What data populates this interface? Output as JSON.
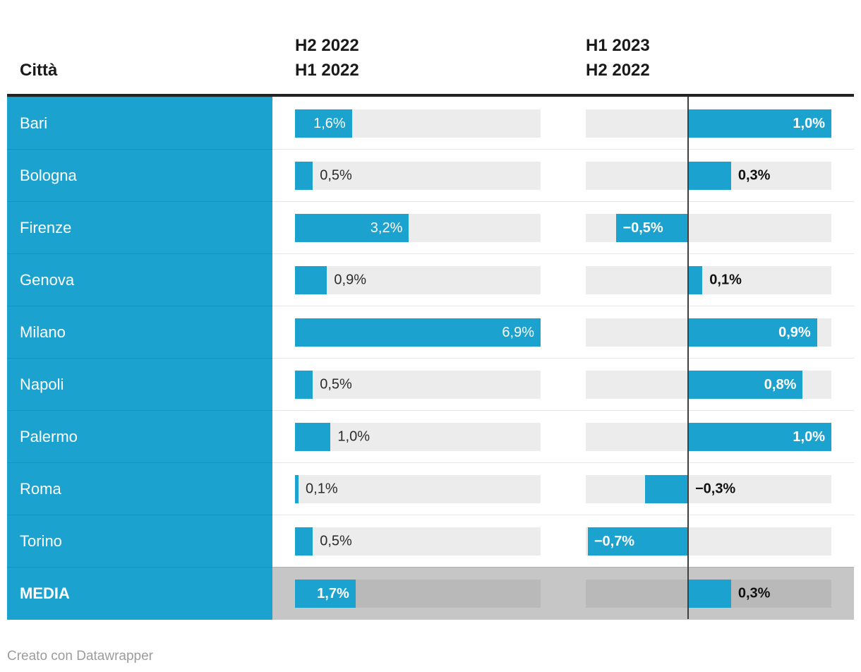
{
  "header": {
    "city_label": "Città",
    "col1_lines": [
      "H2 2022",
      "H1 2022"
    ],
    "col2_lines": [
      "H1 2023",
      "H2 2022"
    ]
  },
  "footer": {
    "credit": "Creato con Datawrapper"
  },
  "colors": {
    "accent": "#1CA2CF",
    "track": "#ECECEC",
    "media_row_bg": "#C6C6C6",
    "media_track": "#B9B9B9",
    "separator": "#E7E7E7",
    "header_rule": "#222222",
    "zero_line": "#3F3F3F",
    "header_text": "#1A1A1A",
    "value_outside_col1": "#2B2B2B",
    "value_outside_col2": "#111111",
    "city_text": "#FFFFFF",
    "footer_text": "#9C9C9C"
  },
  "chart_data": {
    "type": "bar",
    "orientation": "horizontal",
    "unit": "%",
    "categories": [
      "Bari",
      "Bologna",
      "Firenze",
      "Genova",
      "Milano",
      "Napoli",
      "Palermo",
      "Roma",
      "Torino",
      "MEDIA"
    ],
    "summary_row": "MEDIA",
    "series": [
      {
        "name": "H2 2022 / H1 2022",
        "values": [
          1.6,
          0.5,
          3.2,
          0.9,
          6.9,
          0.5,
          1.0,
          0.1,
          0.5,
          1.7
        ],
        "labels": [
          "1,6%",
          "0,5%",
          "3,2%",
          "0,9%",
          "6,9%",
          "0,5%",
          "1,0%",
          "0,1%",
          "0,5%",
          "1,7%"
        ],
        "domain": [
          0,
          6.9
        ],
        "zero_line": false
      },
      {
        "name": "H1 2023 / H2 2022",
        "values": [
          1.0,
          0.3,
          -0.5,
          0.1,
          0.9,
          0.8,
          1.0,
          -0.3,
          -0.7,
          0.3
        ],
        "labels": [
          "1,0%",
          "0,3%",
          "−0,5%",
          "0,1%",
          "0,9%",
          "0,8%",
          "1,0%",
          "−0,3%",
          "−0,7%",
          "0,3%"
        ],
        "domain": [
          -0.714,
          1.0
        ],
        "zero_line": true
      }
    ]
  }
}
